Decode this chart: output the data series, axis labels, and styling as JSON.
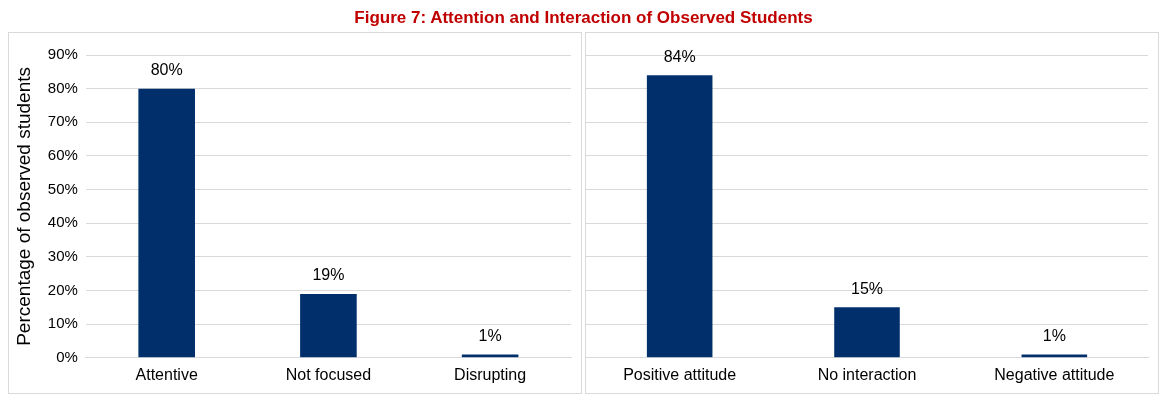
{
  "chart_data": [
    {
      "type": "bar",
      "title": "Figure 7: Attention and Interaction of Observed Students",
      "ylabel": "Percentage of observed students",
      "categories": [
        "Attentive",
        "Not focused",
        "Disrupting"
      ],
      "values": [
        80,
        19,
        1
      ],
      "color": "#002f6c",
      "value_labels": [
        "80%",
        "19%",
        "1%"
      ],
      "ylim": [
        0,
        90
      ],
      "yticks": [
        {
          "value": 0,
          "label": "0%"
        },
        {
          "value": 10,
          "label": "10%"
        },
        {
          "value": 20,
          "label": "20%"
        },
        {
          "value": 30,
          "label": "30%"
        },
        {
          "value": 40,
          "label": "40%"
        },
        {
          "value": 50,
          "label": "50%"
        },
        {
          "value": 60,
          "label": "60%"
        },
        {
          "value": 70,
          "label": "70%"
        },
        {
          "value": 80,
          "label": "80%"
        },
        {
          "value": 90,
          "label": "90%"
        }
      ],
      "grid": "y",
      "legend": false
    },
    {
      "type": "bar",
      "categories": [
        "Positive attitude",
        "No interaction",
        "Negative attitude"
      ],
      "values": [
        84,
        15,
        1
      ],
      "color": "#002f6c",
      "value_labels": [
        "84%",
        "15%",
        "1%"
      ],
      "ylim": [
        0,
        90
      ],
      "yticks": [
        0,
        10,
        20,
        30,
        40,
        50,
        60,
        70,
        80,
        90
      ],
      "grid": "y",
      "legend": false,
      "tick_labels": "x"
    }
  ]
}
